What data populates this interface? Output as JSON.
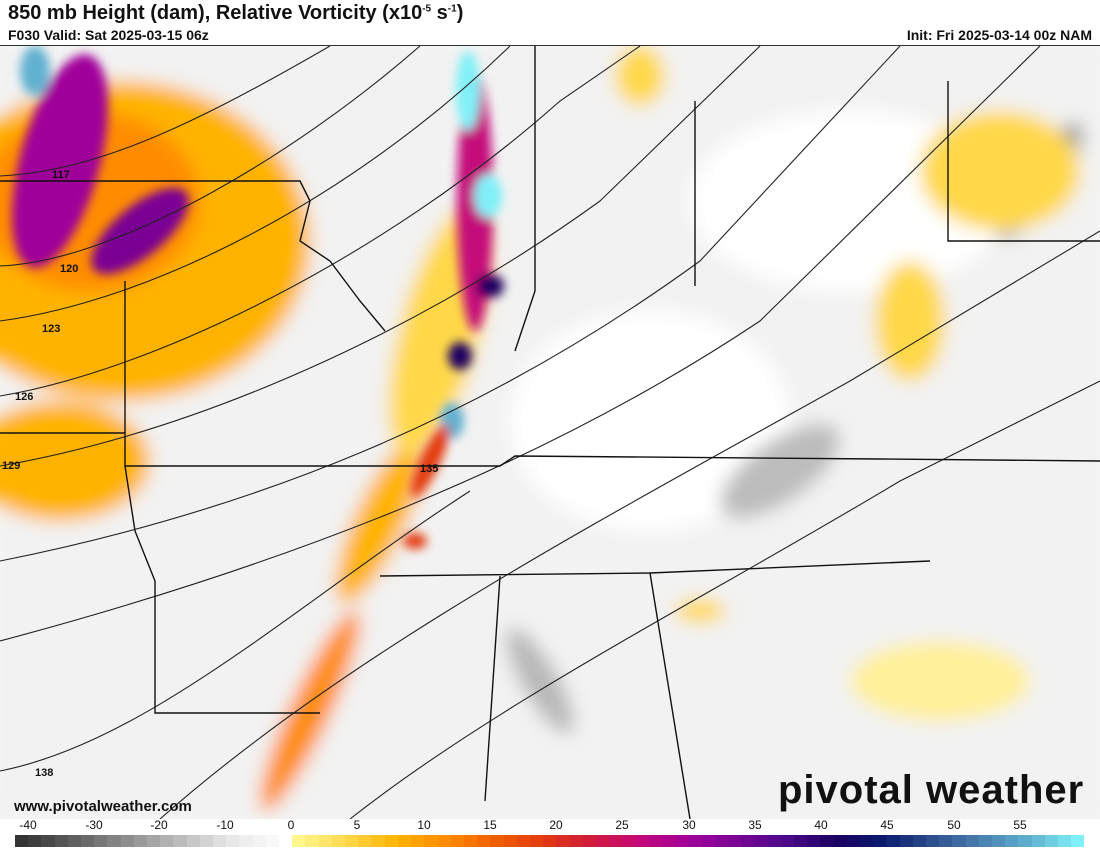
{
  "header": {
    "title": "850 mb Height (dam), Relative Vorticity (x10",
    "title_exp1": "-5",
    "title_mid": " s",
    "title_exp2": "-1",
    "title_end": ")",
    "valid": "F030 Valid: Sat 2025-03-15 06z",
    "init": "Init: Fri 2025-03-14 00z NAM"
  },
  "map": {
    "contour_labels": [
      "117",
      "120",
      "123",
      "126",
      "129",
      "135",
      "138"
    ],
    "field": "relative vorticity shading with 850 mb height contours over the central and eastern United States"
  },
  "footer": {
    "website": "www.pivotalweather.com",
    "logo": "pivotalweather"
  },
  "colorbar": {
    "tick_labels": [
      "-40",
      "-30",
      "-20",
      "-10",
      "0",
      "5",
      "10",
      "15",
      "20",
      "25",
      "30",
      "35",
      "40",
      "45",
      "50",
      "55"
    ],
    "range": [
      -42,
      60
    ],
    "colors_negative": [
      "#333333",
      "#3d3d3d",
      "#484848",
      "#545454",
      "#606060",
      "#6b6b6b",
      "#777777",
      "#838383",
      "#8e8e8e",
      "#9a9a9a",
      "#a5a5a5",
      "#b1b1b1",
      "#bcbcbc",
      "#c8c8c8",
      "#d3d3d3",
      "#dfdfdf",
      "#e8e8e8",
      "#eeeeee",
      "#f3f3f3",
      "#f8f8f8",
      "#ffffff"
    ],
    "colors_positive_stops": [
      "#fff68f",
      "#ffd84a",
      "#ffb300",
      "#ff8c00",
      "#f06000",
      "#e33a10",
      "#d11a3c",
      "#c4087a",
      "#a0009a",
      "#7a0094",
      "#4e0a8a",
      "#1a0060",
      "#0a1a6e",
      "#2e4e8e",
      "#4a7fb0",
      "#60b0d0",
      "#80f0f8"
    ]
  }
}
